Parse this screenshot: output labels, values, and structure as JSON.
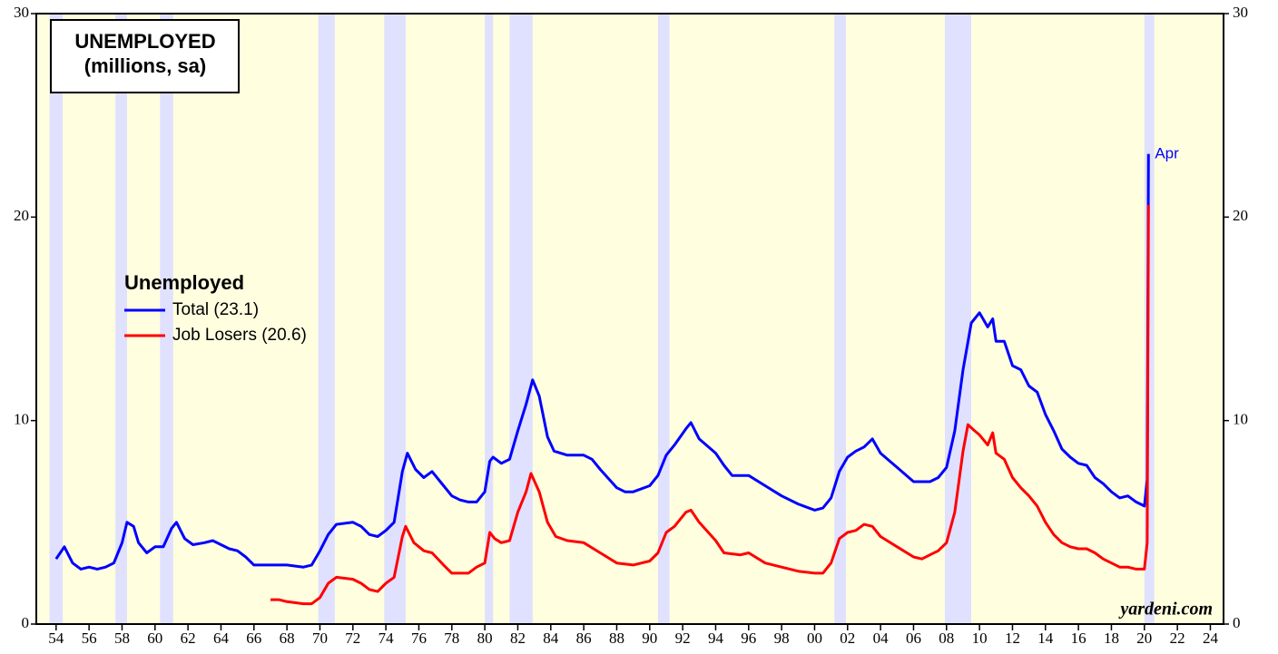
{
  "chart_data": {
    "type": "line",
    "title": [
      "UNEMPLOYED",
      "(millions, sa)"
    ],
    "legend_title": "Unemployed",
    "annotation": "Apr",
    "source": "yardeni.com",
    "xlim": [
      1952.8,
      2024.8
    ],
    "ylim": [
      0,
      30
    ],
    "xticks": [
      {
        "value": 1954,
        "label": "54"
      },
      {
        "value": 1956,
        "label": "56"
      },
      {
        "value": 1958,
        "label": "58"
      },
      {
        "value": 1960,
        "label": "60"
      },
      {
        "value": 1962,
        "label": "62"
      },
      {
        "value": 1964,
        "label": "64"
      },
      {
        "value": 1966,
        "label": "66"
      },
      {
        "value": 1968,
        "label": "68"
      },
      {
        "value": 1970,
        "label": "70"
      },
      {
        "value": 1972,
        "label": "72"
      },
      {
        "value": 1974,
        "label": "74"
      },
      {
        "value": 1976,
        "label": "76"
      },
      {
        "value": 1978,
        "label": "78"
      },
      {
        "value": 1980,
        "label": "80"
      },
      {
        "value": 1982,
        "label": "82"
      },
      {
        "value": 1984,
        "label": "84"
      },
      {
        "value": 1986,
        "label": "86"
      },
      {
        "value": 1988,
        "label": "88"
      },
      {
        "value": 1990,
        "label": "90"
      },
      {
        "value": 1992,
        "label": "92"
      },
      {
        "value": 1994,
        "label": "94"
      },
      {
        "value": 1996,
        "label": "96"
      },
      {
        "value": 1998,
        "label": "98"
      },
      {
        "value": 2000,
        "label": "00"
      },
      {
        "value": 2002,
        "label": "02"
      },
      {
        "value": 2004,
        "label": "04"
      },
      {
        "value": 2006,
        "label": "06"
      },
      {
        "value": 2008,
        "label": "08"
      },
      {
        "value": 2010,
        "label": "10"
      },
      {
        "value": 2012,
        "label": "12"
      },
      {
        "value": 2014,
        "label": "14"
      },
      {
        "value": 2016,
        "label": "16"
      },
      {
        "value": 2018,
        "label": "18"
      },
      {
        "value": 2020,
        "label": "20"
      },
      {
        "value": 2022,
        "label": "22"
      },
      {
        "value": 2024,
        "label": "24"
      }
    ],
    "yticks": [
      0,
      10,
      20,
      30
    ],
    "recessions": [
      [
        1953.6,
        1954.4
      ],
      [
        1957.6,
        1958.3
      ],
      [
        1960.3,
        1961.1
      ],
      [
        1969.9,
        1970.9
      ],
      [
        1973.9,
        1975.2
      ],
      [
        1980.0,
        1980.5
      ],
      [
        1981.5,
        1982.9
      ],
      [
        1990.5,
        1991.2
      ],
      [
        2001.2,
        2001.9
      ],
      [
        2007.9,
        2009.5
      ],
      [
        2020.0,
        2020.6
      ]
    ],
    "plot_color": "#ffffe0",
    "recession_color": "#e0e0ff",
    "series": [
      {
        "name": "Total (23.1)",
        "color": "#0000ff",
        "x": [
          1954.0,
          1954.5,
          1955,
          1955.5,
          1956,
          1956.5,
          1957,
          1957.5,
          1958.0,
          1958.3,
          1958.7,
          1959.0,
          1959.5,
          1960,
          1960.5,
          1961.0,
          1961.3,
          1961.8,
          1962.3,
          1963,
          1963.5,
          1964,
          1964.5,
          1965,
          1965.5,
          1966,
          1967,
          1968,
          1969,
          1969.5,
          1970,
          1970.5,
          1971,
          1972,
          1972.5,
          1973,
          1973.5,
          1974,
          1974.5,
          1975,
          1975.3,
          1975.8,
          1976.3,
          1976.8,
          1977.5,
          1978,
          1978.5,
          1979,
          1979.5,
          1980.0,
          1980.3,
          1980.5,
          1981.0,
          1981.5,
          1982,
          1982.5,
          1982.9,
          1983.3,
          1983.8,
          1984.2,
          1985,
          1986,
          1986.5,
          1987,
          1988,
          1988.5,
          1989,
          1990,
          1990.5,
          1991,
          1991.5,
          1992.2,
          1992.5,
          1993,
          1994,
          1994.5,
          1995,
          1996,
          1997,
          1998,
          1999,
          2000,
          2000.5,
          2001,
          2001.5,
          2002,
          2002.5,
          2003,
          2003.5,
          2004,
          2005,
          2006,
          2006.5,
          2007,
          2007.5,
          2008,
          2008.5,
          2009,
          2009.5,
          2010,
          2010.5,
          2010.8,
          2011,
          2011.5,
          2012,
          2012.5,
          2013,
          2013.5,
          2014,
          2014.5,
          2015,
          2015.5,
          2016,
          2016.5,
          2017,
          2017.5,
          2018,
          2018.5,
          2019,
          2019.5,
          2020.0,
          2020.17,
          2020.25
        ],
        "values": [
          3.2,
          3.8,
          3.0,
          2.7,
          2.8,
          2.7,
          2.8,
          3.0,
          4.0,
          5.0,
          4.8,
          4.0,
          3.5,
          3.8,
          3.8,
          4.7,
          5.0,
          4.2,
          3.9,
          4.0,
          4.1,
          3.9,
          3.7,
          3.6,
          3.3,
          2.9,
          2.9,
          2.9,
          2.8,
          2.9,
          3.6,
          4.4,
          4.9,
          5.0,
          4.8,
          4.4,
          4.3,
          4.6,
          5.0,
          7.5,
          8.4,
          7.6,
          7.2,
          7.5,
          6.8,
          6.3,
          6.1,
          6.0,
          6.0,
          6.5,
          8.0,
          8.2,
          7.9,
          8.1,
          9.5,
          10.8,
          12.0,
          11.2,
          9.2,
          8.5,
          8.3,
          8.3,
          8.1,
          7.6,
          6.7,
          6.5,
          6.5,
          6.8,
          7.3,
          8.3,
          8.8,
          9.6,
          9.9,
          9.1,
          8.4,
          7.8,
          7.3,
          7.3,
          6.8,
          6.3,
          5.9,
          5.6,
          5.7,
          6.2,
          7.5,
          8.2,
          8.5,
          8.7,
          9.1,
          8.4,
          7.7,
          7.0,
          7.0,
          7.0,
          7.2,
          7.7,
          9.5,
          12.5,
          14.8,
          15.3,
          14.6,
          15.0,
          13.9,
          13.9,
          12.7,
          12.5,
          11.7,
          11.4,
          10.3,
          9.5,
          8.6,
          8.2,
          7.9,
          7.8,
          7.2,
          6.9,
          6.5,
          6.2,
          6.3,
          6.0,
          5.8,
          7.1,
          23.1
        ]
      },
      {
        "name": "Job Losers (20.6)",
        "color": "#ff0000",
        "x": [
          1967.0,
          1967.5,
          1968,
          1969,
          1969.5,
          1970,
          1970.5,
          1971,
          1972,
          1972.5,
          1973,
          1973.5,
          1974,
          1974.5,
          1975,
          1975.2,
          1975.7,
          1976.3,
          1976.8,
          1977.5,
          1978,
          1979,
          1979.5,
          1980.0,
          1980.3,
          1980.6,
          1981,
          1981.5,
          1982,
          1982.5,
          1982.8,
          1983.3,
          1983.8,
          1984.3,
          1985,
          1986,
          1987,
          1988,
          1989,
          1990,
          1990.5,
          1991,
          1991.5,
          1992.2,
          1992.5,
          1993,
          1994,
          1994.5,
          1995.5,
          1996,
          1997,
          1998,
          1999,
          2000,
          2000.5,
          2001,
          2001.5,
          2002,
          2002.5,
          2003,
          2003.5,
          2004,
          2005,
          2006,
          2006.5,
          2007,
          2007.5,
          2008,
          2008.5,
          2009,
          2009.3,
          2009.7,
          2010,
          2010.5,
          2010.8,
          2011,
          2011.5,
          2012,
          2012.5,
          2013,
          2013.5,
          2014,
          2014.5,
          2015,
          2015.5,
          2016,
          2016.5,
          2017,
          2017.5,
          2018,
          2018.5,
          2019,
          2019.5,
          2020.0,
          2020.17,
          2020.25
        ],
        "values": [
          1.2,
          1.2,
          1.1,
          1.0,
          1.0,
          1.3,
          2.0,
          2.3,
          2.2,
          2.0,
          1.7,
          1.6,
          2.0,
          2.3,
          4.3,
          4.8,
          4.0,
          3.6,
          3.5,
          2.9,
          2.5,
          2.5,
          2.8,
          3.0,
          4.5,
          4.2,
          4.0,
          4.1,
          5.5,
          6.5,
          7.4,
          6.5,
          5.0,
          4.3,
          4.1,
          4.0,
          3.5,
          3.0,
          2.9,
          3.1,
          3.5,
          4.5,
          4.8,
          5.5,
          5.6,
          5.0,
          4.1,
          3.5,
          3.4,
          3.5,
          3.0,
          2.8,
          2.6,
          2.5,
          2.5,
          3.0,
          4.2,
          4.5,
          4.6,
          4.9,
          4.8,
          4.3,
          3.8,
          3.3,
          3.2,
          3.4,
          3.6,
          4.0,
          5.5,
          8.5,
          9.8,
          9.5,
          9.3,
          8.8,
          9.4,
          8.4,
          8.1,
          7.2,
          6.7,
          6.3,
          5.8,
          5.0,
          4.4,
          4.0,
          3.8,
          3.7,
          3.7,
          3.5,
          3.2,
          3.0,
          2.8,
          2.8,
          2.7,
          2.7,
          4.0,
          20.6
        ]
      }
    ]
  }
}
